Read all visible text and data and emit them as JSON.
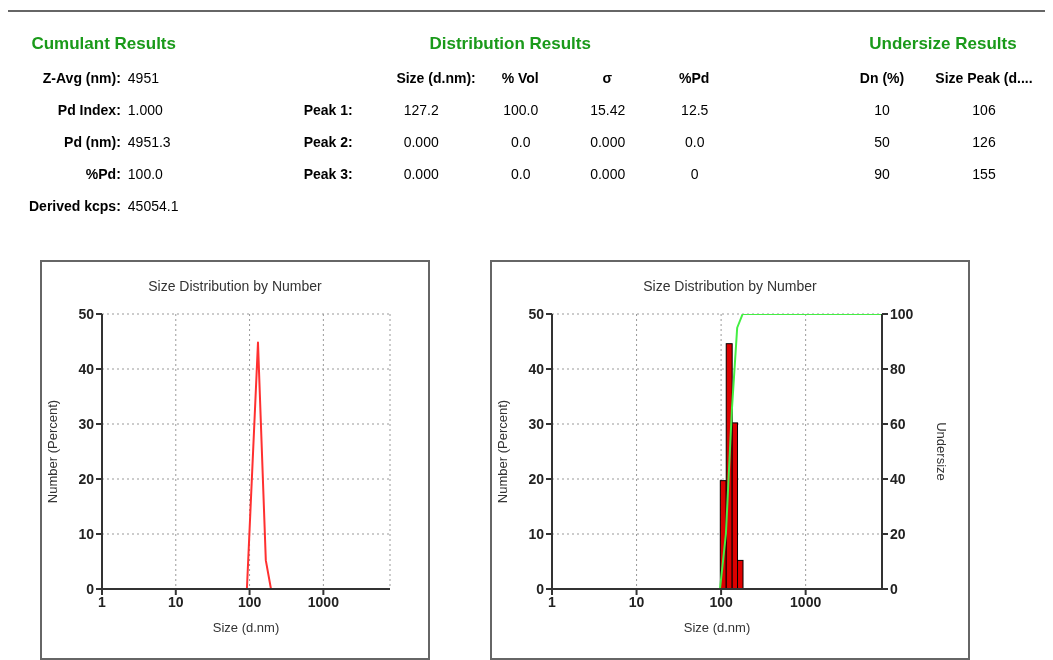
{
  "chart_data": [
    {
      "type": "other",
      "title": "Cumulant Results",
      "annotations": [
        "Z-Avg (nm):",
        "4951",
        "Pd Index:",
        "1.000",
        "Pd (nm):",
        "4951.3",
        "%Pd:",
        "100.0",
        "Derived kcps:",
        "45054.1"
      ]
    },
    {
      "type": "other",
      "title": "Distribution Results",
      "annotations": [
        "Size (d.nm):",
        "% Vol",
        "σ",
        "%Pd",
        "Peak 1:",
        "127.2",
        "100.0",
        "15.42",
        "12.5",
        "Peak 2:",
        "0.000",
        "0.0",
        "0.000",
        "0.0",
        "Peak 3:",
        "0.000",
        "0.0",
        "0.000",
        "0"
      ]
    },
    {
      "type": "other",
      "title": "Undersize Results",
      "annotations": [
        "Dn (%)",
        "Size Peak (d....",
        "10",
        "106",
        "50",
        "126",
        "90",
        "155"
      ]
    },
    {
      "type": "line",
      "title": "Size Distribution by Number",
      "xlabel": "Size (d.nm)",
      "ylabel": "Number (Percent)",
      "log": "x",
      "xlim": [
        1,
        8000
      ],
      "xticks": [
        1,
        10,
        100,
        1000
      ],
      "ylim": [
        0,
        50
      ],
      "yticks": [
        0,
        10,
        20,
        30,
        40,
        50
      ],
      "grid": true,
      "series": [
        {
          "color": "#ff3030",
          "x": [
            1,
            92,
            130,
            166,
            195,
            8000
          ],
          "values": [
            0,
            0,
            44.8,
            5.2,
            0,
            0
          ]
        }
      ]
    },
    {
      "type": "histogram",
      "title": "Size Distribution by Number",
      "xlabel": "Size (d.nm)",
      "ylabel": "Number (Percent)",
      "y2label": "Undersize",
      "log": "x",
      "xlim": [
        1,
        8000
      ],
      "xticks": [
        1,
        10,
        100,
        1000
      ],
      "ylim": [
        0,
        50
      ],
      "yticks": [
        0,
        10,
        20,
        30,
        40,
        50
      ],
      "y2lim": [
        0,
        100
      ],
      "y2ticks": [
        0,
        20,
        40,
        60,
        80,
        100
      ],
      "grid": true,
      "series": [
        {
          "type": "histogram",
          "color": "#dd0000",
          "bins": [
            97,
            114,
            134,
            155,
            180
          ],
          "values": [
            19.7,
            44.6,
            30.2,
            5.2
          ]
        },
        {
          "type": "line",
          "axis": "y2",
          "color": "#44ee44",
          "x": [
            1,
            97,
            114,
            134,
            155,
            180,
            8000
          ],
          "values": [
            0,
            0,
            20,
            65,
            95,
            100,
            100
          ]
        }
      ]
    }
  ]
}
